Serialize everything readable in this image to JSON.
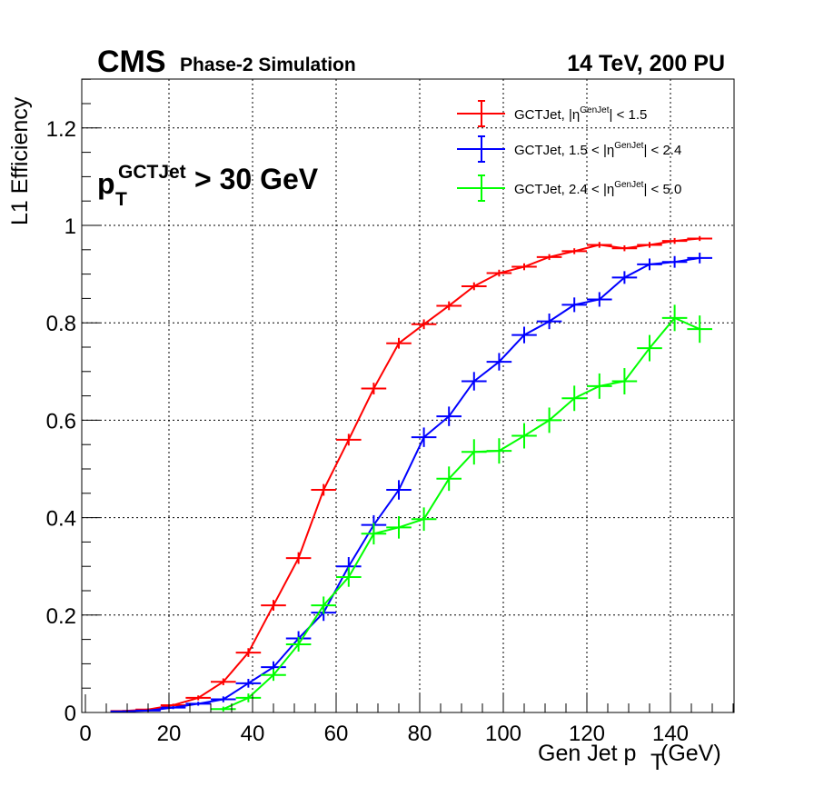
{
  "header": {
    "experiment": "CMS",
    "status": "Phase-2 Simulation",
    "conditions": "14 TeV, 200 PU"
  },
  "annotation": {
    "main": "p",
    "sup": "GCTJet",
    "sub": "T",
    "rest": " > 30 GeV"
  },
  "chart_data": {
    "type": "line",
    "xlabel_main": "Gen Jet p",
    "xlabel_sub": "T",
    "xlabel_unit": " (GeV)",
    "ylabel": "L1 Efficiency",
    "xlim": [
      0,
      155
    ],
    "ylim": [
      0,
      1.3
    ],
    "x_ticks": [
      0,
      20,
      40,
      60,
      80,
      100,
      120,
      140
    ],
    "y_ticks": [
      0,
      0.2,
      0.4,
      0.6,
      0.8,
      1,
      1.2
    ],
    "y_tick_labels": [
      "0",
      "0.2",
      "0.4",
      "0.6",
      "0.8",
      "1",
      "1.2"
    ],
    "grid": true,
    "legend_position": "top-right",
    "legend": [
      {
        "prefix": "GCTJet, |η",
        "sup": "GenJet",
        "suffix": "| < 1.5"
      },
      {
        "prefix": "GCTJet, 1.5 < |η",
        "sup": "GenJet",
        "suffix": "| < 2.4"
      },
      {
        "prefix": "GCTJet, 2.4 < |η",
        "sup": "GenJet",
        "suffix": "| < 5.0"
      }
    ],
    "series": [
      {
        "color": "#ff0000",
        "x": [
          9,
          15,
          21,
          27,
          33,
          39,
          45,
          51,
          57,
          63,
          69,
          75,
          81,
          87,
          93,
          99,
          105,
          111,
          117,
          123,
          129,
          135,
          141,
          147
        ],
        "y": [
          0.003,
          0.006,
          0.015,
          0.03,
          0.063,
          0.123,
          0.22,
          0.317,
          0.457,
          0.56,
          0.665,
          0.758,
          0.797,
          0.835,
          0.875,
          0.902,
          0.915,
          0.935,
          0.947,
          0.96,
          0.953,
          0.96,
          0.968,
          0.973
        ],
        "err": [
          0.002,
          0.002,
          0.003,
          0.005,
          0.007,
          0.009,
          0.011,
          0.012,
          0.012,
          0.012,
          0.012,
          0.011,
          0.01,
          0.009,
          0.008,
          0.007,
          0.007,
          0.006,
          0.006,
          0.006,
          0.006,
          0.006,
          0.006,
          0.005
        ],
        "xerr": 3
      },
      {
        "color": "#0000ff",
        "x": [
          9,
          15,
          21,
          27,
          33,
          39,
          45,
          51,
          57,
          63,
          69,
          75,
          81,
          87,
          93,
          99,
          105,
          111,
          117,
          123,
          129,
          135,
          141,
          147
        ],
        "y": [
          0.002,
          0.004,
          0.01,
          0.018,
          0.027,
          0.06,
          0.093,
          0.152,
          0.205,
          0.3,
          0.385,
          0.457,
          0.565,
          0.608,
          0.68,
          0.72,
          0.775,
          0.803,
          0.837,
          0.848,
          0.893,
          0.92,
          0.925,
          0.933
        ],
        "err": [
          0.002,
          0.002,
          0.003,
          0.004,
          0.006,
          0.009,
          0.012,
          0.015,
          0.017,
          0.019,
          0.02,
          0.02,
          0.02,
          0.02,
          0.019,
          0.018,
          0.017,
          0.016,
          0.015,
          0.015,
          0.013,
          0.012,
          0.012,
          0.011
        ],
        "xerr": 3
      },
      {
        "color": "#00ff00",
        "x": [
          33,
          39,
          45,
          51,
          57,
          63,
          69,
          75,
          81,
          87,
          93,
          99,
          105,
          111,
          117,
          123,
          129,
          135,
          141,
          147
        ],
        "y": [
          0.007,
          0.03,
          0.077,
          0.14,
          0.22,
          0.278,
          0.367,
          0.38,
          0.397,
          0.48,
          0.535,
          0.537,
          0.568,
          0.6,
          0.645,
          0.67,
          0.68,
          0.748,
          0.81,
          0.787
        ],
        "err": [
          0.005,
          0.009,
          0.012,
          0.015,
          0.018,
          0.02,
          0.022,
          0.023,
          0.024,
          0.025,
          0.026,
          0.026,
          0.026,
          0.026,
          0.026,
          0.026,
          0.027,
          0.027,
          0.027,
          0.028
        ],
        "xerr": 3
      }
    ]
  }
}
